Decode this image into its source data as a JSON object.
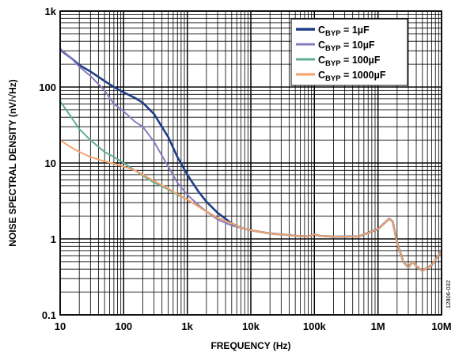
{
  "chart_data": {
    "type": "line",
    "xlabel": "FREQUENCY (Hz)",
    "ylabel": "NOISE SPECTRAL DENSITY (nV/√Hz)",
    "x_scale": "log",
    "y_scale": "log",
    "xlim": [
      10,
      10000000
    ],
    "ylim": [
      0.1,
      1000
    ],
    "x_ticks": [
      "10",
      "100",
      "1k",
      "10k",
      "100k",
      "1M",
      "10M"
    ],
    "y_ticks": [
      "0.1",
      "1",
      "10",
      "100",
      "1k"
    ],
    "grid": true,
    "legend_position": "top-right",
    "figure_id": "12806-032",
    "series": [
      {
        "label_main": "C",
        "label_sub": "BYP",
        "label_value": " = 1µF",
        "color": "#1f3e86",
        "points": [
          [
            10,
            310
          ],
          [
            15,
            240
          ],
          [
            20,
            195
          ],
          [
            30,
            160
          ],
          [
            50,
            120
          ],
          [
            70,
            100
          ],
          [
            100,
            85
          ],
          [
            150,
            72
          ],
          [
            200,
            62
          ],
          [
            300,
            44
          ],
          [
            500,
            22
          ],
          [
            700,
            12
          ],
          [
            1000,
            7
          ],
          [
            1500,
            4.2
          ],
          [
            2000,
            3.1
          ],
          [
            3000,
            2.2
          ],
          [
            5000,
            1.6
          ],
          [
            7000,
            1.4
          ],
          [
            10000,
            1.3
          ],
          [
            20000,
            1.18
          ],
          [
            50000,
            1.1
          ],
          [
            80000,
            1.08
          ],
          [
            100000,
            1.15
          ],
          [
            120000,
            1.1
          ],
          [
            200000,
            1.07
          ],
          [
            500000,
            1.08
          ],
          [
            1000000,
            1.35
          ],
          [
            1500000,
            1.85
          ],
          [
            1700000,
            1.7
          ],
          [
            2000000,
            0.9
          ],
          [
            2500000,
            0.5
          ],
          [
            3000000,
            0.42
          ],
          [
            3500000,
            0.5
          ],
          [
            4000000,
            0.44
          ],
          [
            5000000,
            0.38
          ],
          [
            7000000,
            0.45
          ],
          [
            10000000,
            0.7
          ]
        ]
      },
      {
        "label_main": "C",
        "label_sub": "BYP",
        "label_value": " = 10µF",
        "color": "#8a7bc0",
        "points": [
          [
            10,
            320
          ],
          [
            15,
            240
          ],
          [
            20,
            185
          ],
          [
            30,
            140
          ],
          [
            50,
            90
          ],
          [
            70,
            60
          ],
          [
            100,
            48
          ],
          [
            150,
            35
          ],
          [
            200,
            30
          ],
          [
            300,
            19
          ],
          [
            500,
            9
          ],
          [
            700,
            5.5
          ],
          [
            1000,
            3.8
          ],
          [
            1500,
            2.8
          ],
          [
            2000,
            2.3
          ],
          [
            3000,
            1.8
          ],
          [
            5000,
            1.5
          ],
          [
            7000,
            1.4
          ],
          [
            10000,
            1.3
          ],
          [
            20000,
            1.18
          ],
          [
            50000,
            1.1
          ],
          [
            80000,
            1.08
          ],
          [
            100000,
            1.15
          ],
          [
            120000,
            1.1
          ],
          [
            200000,
            1.07
          ],
          [
            500000,
            1.08
          ],
          [
            1000000,
            1.35
          ],
          [
            1500000,
            1.85
          ],
          [
            1700000,
            1.7
          ],
          [
            2000000,
            0.9
          ],
          [
            2500000,
            0.5
          ],
          [
            3000000,
            0.42
          ],
          [
            3500000,
            0.5
          ],
          [
            4000000,
            0.44
          ],
          [
            5000000,
            0.38
          ],
          [
            7000000,
            0.45
          ],
          [
            10000000,
            0.7
          ]
        ]
      },
      {
        "label_main": "C",
        "label_sub": "BYP",
        "label_value": " = 100µF",
        "color": "#5fae8f",
        "points": [
          [
            10,
            65
          ],
          [
            15,
            40
          ],
          [
            20,
            28
          ],
          [
            30,
            20
          ],
          [
            50,
            14
          ],
          [
            70,
            12
          ],
          [
            100,
            10
          ],
          [
            150,
            8
          ],
          [
            200,
            6.8
          ],
          [
            300,
            5.5
          ],
          [
            500,
            4.5
          ],
          [
            700,
            3.8
          ],
          [
            1000,
            3.3
          ],
          [
            2000,
            2.3
          ],
          [
            3000,
            1.9
          ],
          [
            5000,
            1.6
          ],
          [
            7000,
            1.4
          ],
          [
            10000,
            1.3
          ],
          [
            20000,
            1.18
          ],
          [
            50000,
            1.1
          ],
          [
            80000,
            1.08
          ],
          [
            100000,
            1.15
          ],
          [
            120000,
            1.1
          ],
          [
            200000,
            1.07
          ],
          [
            500000,
            1.08
          ],
          [
            1000000,
            1.35
          ],
          [
            1500000,
            1.85
          ],
          [
            1700000,
            1.7
          ],
          [
            2000000,
            0.9
          ],
          [
            2500000,
            0.5
          ],
          [
            3000000,
            0.42
          ],
          [
            3500000,
            0.5
          ],
          [
            4000000,
            0.44
          ],
          [
            5000000,
            0.38
          ],
          [
            7000000,
            0.45
          ],
          [
            10000000,
            0.7
          ]
        ]
      },
      {
        "label_main": "C",
        "label_sub": "BYP",
        "label_value": " = 1000µF",
        "color": "#f4a26b",
        "points": [
          [
            10,
            20
          ],
          [
            15,
            16
          ],
          [
            20,
            14
          ],
          [
            30,
            12
          ],
          [
            50,
            10.5
          ],
          [
            70,
            9.8
          ],
          [
            100,
            9
          ],
          [
            150,
            8
          ],
          [
            200,
            7
          ],
          [
            300,
            5.8
          ],
          [
            500,
            4.6
          ],
          [
            700,
            3.9
          ],
          [
            1000,
            3.3
          ],
          [
            2000,
            2.3
          ],
          [
            3000,
            1.9
          ],
          [
            5000,
            1.6
          ],
          [
            7000,
            1.4
          ],
          [
            10000,
            1.3
          ],
          [
            20000,
            1.18
          ],
          [
            50000,
            1.1
          ],
          [
            80000,
            1.08
          ],
          [
            100000,
            1.15
          ],
          [
            120000,
            1.1
          ],
          [
            200000,
            1.07
          ],
          [
            500000,
            1.08
          ],
          [
            1000000,
            1.35
          ],
          [
            1500000,
            1.85
          ],
          [
            1700000,
            1.7
          ],
          [
            2000000,
            0.9
          ],
          [
            2500000,
            0.5
          ],
          [
            3000000,
            0.42
          ],
          [
            3500000,
            0.5
          ],
          [
            4000000,
            0.44
          ],
          [
            5000000,
            0.38
          ],
          [
            7000000,
            0.45
          ],
          [
            10000000,
            0.7
          ]
        ]
      }
    ]
  }
}
